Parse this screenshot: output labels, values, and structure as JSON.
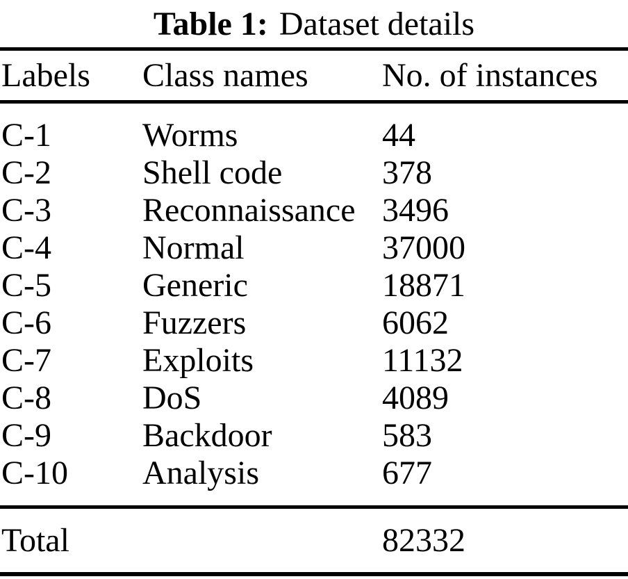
{
  "title": {
    "label": "Table 1:",
    "caption": "Dataset details"
  },
  "table": {
    "columns": [
      "Labels",
      "Class names",
      "No. of instances"
    ],
    "rows": [
      {
        "label": "C-1",
        "class_name": "Worms",
        "instances": "44"
      },
      {
        "label": "C-2",
        "class_name": "Shell code",
        "instances": "378"
      },
      {
        "label": "C-3",
        "class_name": "Reconnaissance",
        "instances": "3496"
      },
      {
        "label": "C-4",
        "class_name": "Normal",
        "instances": "37000"
      },
      {
        "label": "C-5",
        "class_name": "Generic",
        "instances": "18871"
      },
      {
        "label": "C-6",
        "class_name": "Fuzzers",
        "instances": "6062"
      },
      {
        "label": "C-7",
        "class_name": "Exploits",
        "instances": "11132"
      },
      {
        "label": "C-8",
        "class_name": "DoS",
        "instances": "4089"
      },
      {
        "label": "C-9",
        "class_name": "Backdoor",
        "instances": "583"
      },
      {
        "label": "C-10",
        "class_name": "Analysis",
        "instances": "677"
      }
    ],
    "total": {
      "label": "Total",
      "instances": "82332"
    }
  },
  "colors": {
    "text": "#000000",
    "background": "#ffffff",
    "rule": "#000000"
  }
}
